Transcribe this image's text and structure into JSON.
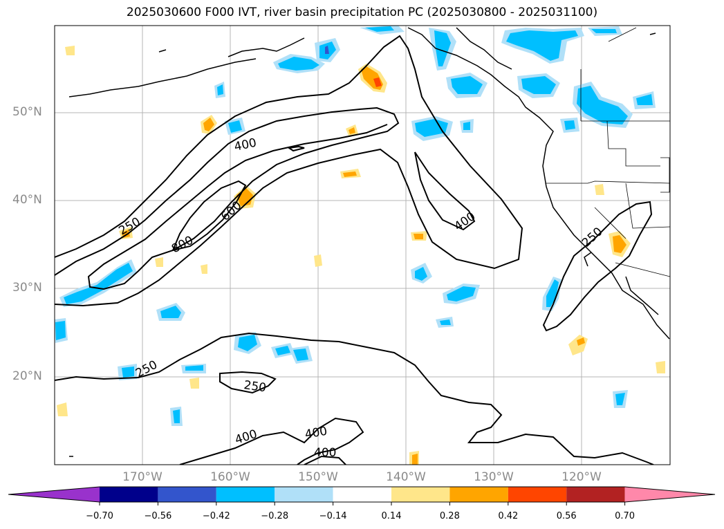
{
  "title": "2025030600 F000 IVT, river basin precipitation PC (2025030800 - 2025031100)",
  "latitude_labels": [
    {
      "lat": 50,
      "text": "50°N"
    },
    {
      "lat": 40,
      "text": "40°N"
    },
    {
      "lat": 30,
      "text": "30°N"
    },
    {
      "lat": 20,
      "text": "20°N"
    }
  ],
  "longitude_labels": [
    {
      "lon": -170,
      "text": "170°W"
    },
    {
      "lon": -160,
      "text": "160°W"
    },
    {
      "lon": -150,
      "text": "150°W"
    },
    {
      "lon": -140,
      "text": "140°W"
    },
    {
      "lon": -130,
      "text": "130°W"
    },
    {
      "lon": -120,
      "text": "120°W"
    }
  ],
  "ivt_contour_labels": [
    "250",
    "400",
    "600",
    "800",
    "400",
    "250",
    "250",
    "250",
    "400",
    "400",
    "400"
  ],
  "colorbar": {
    "ticks": [
      "−0.70",
      "−0.56",
      "−0.42",
      "−0.28",
      "−0.14",
      "0.14",
      "0.28",
      "0.42",
      "0.56",
      "0.70"
    ],
    "colors": [
      "#9932cc",
      "#00008b",
      "#3355cc",
      "#00bfff",
      "#b0e0f8",
      "#ffffff",
      "#ffe68a",
      "#ffa500",
      "#ff4500",
      "#b22222",
      "#ff88aa"
    ]
  }
}
